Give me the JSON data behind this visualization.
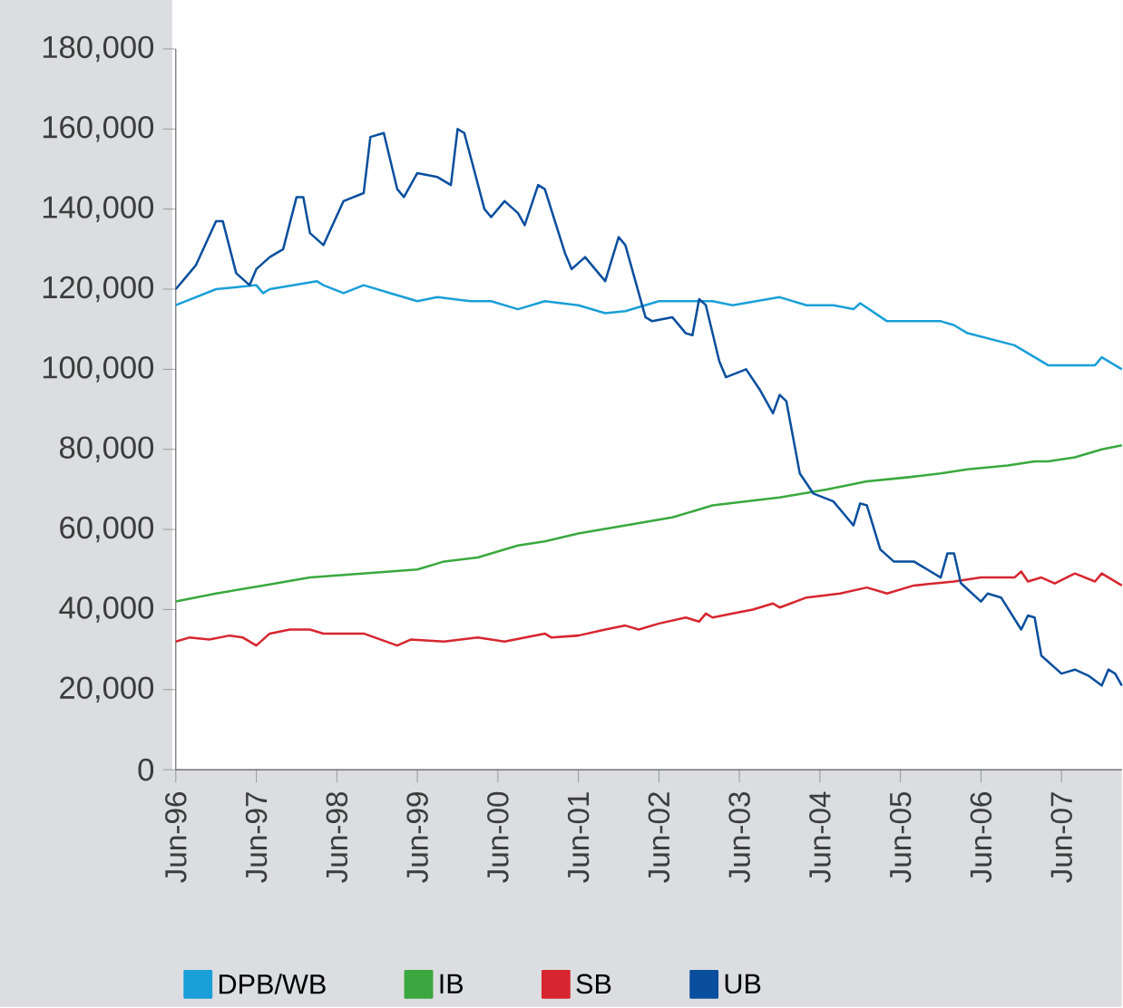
{
  "chart_data": {
    "type": "line",
    "xlim": [
      "1996-06",
      "2008-03"
    ],
    "xticks": [
      {
        "value": "1996-06",
        "label": "Jun-96"
      },
      {
        "value": "1997-06",
        "label": "Jun-97"
      },
      {
        "value": "1998-06",
        "label": "Jun-98"
      },
      {
        "value": "1999-06",
        "label": "Jun-99"
      },
      {
        "value": "2000-06",
        "label": "Jun-00"
      },
      {
        "value": "2001-06",
        "label": "Jun-01"
      },
      {
        "value": "2002-06",
        "label": "Jun-02"
      },
      {
        "value": "2003-06",
        "label": "Jun-03"
      },
      {
        "value": "2004-06",
        "label": "Jun-04"
      },
      {
        "value": "2005-06",
        "label": "Jun-05"
      },
      {
        "value": "2006-06",
        "label": "Jun-06"
      },
      {
        "value": "2007-06",
        "label": "Jun-07"
      }
    ],
    "ylim": [
      0,
      180000
    ],
    "yticks": [
      0,
      {
        "value": 20000,
        "label": "20,000"
      },
      {
        "value": 40000,
        "label": "40,000"
      },
      {
        "value": 60000,
        "label": "60,000"
      },
      {
        "value": 80000,
        "label": "80,000"
      },
      {
        "value": 100000,
        "label": "100,000"
      },
      {
        "value": 120000,
        "label": "120,000"
      },
      {
        "value": 140000,
        "label": "140,000"
      },
      {
        "value": 160000,
        "label": "160,000"
      },
      {
        "value": 180000,
        "label": "180,000"
      }
    ],
    "legend": "bottom",
    "series": [
      {
        "name": "DPB/WB",
        "color": "#1a9fd8",
        "x": [
          "1996-06",
          "1996-12",
          "1997-06",
          "1997-07",
          "1997-08",
          "1998-03",
          "1998-04",
          "1998-07",
          "1998-10",
          "1999-02",
          "1999-06",
          "1999-09",
          "2000-02",
          "2000-05",
          "2000-09",
          "2001-01",
          "2001-06",
          "2001-10",
          "2002-01",
          "2002-06",
          "2002-10",
          "2003-02",
          "2003-05",
          "2003-12",
          "2004-04",
          "2004-08",
          "2004-11",
          "2004-12",
          "2005-04",
          "2005-12",
          "2006-02",
          "2006-04",
          "2006-11",
          "2006-12",
          "2007-02",
          "2007-04",
          "2007-11",
          "2007-12",
          "2008-03"
        ],
        "values": [
          116000,
          120000,
          121000,
          119000,
          120000,
          122000,
          121000,
          119000,
          121000,
          119000,
          117000,
          118000,
          117000,
          117000,
          115000,
          117000,
          116000,
          114000,
          114500,
          117000,
          117000,
          117000,
          116000,
          118000,
          116000,
          116000,
          115000,
          116500,
          112000,
          112000,
          111000,
          109000,
          106000,
          105000,
          103000,
          101000,
          101000,
          103000,
          100000
        ]
      },
      {
        "name": "IB",
        "color": "#3aa83f",
        "x": [
          "1996-06",
          "1996-12",
          "1997-07",
          "1998-02",
          "1998-10",
          "1999-06",
          "1999-10",
          "2000-03",
          "2000-09",
          "2001-01",
          "2001-06",
          "2002-01",
          "2002-08",
          "2003-02",
          "2003-12",
          "2004-07",
          "2005-01",
          "2005-07",
          "2005-12",
          "2006-04",
          "2006-10",
          "2007-02",
          "2007-04",
          "2007-08",
          "2007-12",
          "2008-03"
        ],
        "values": [
          42000,
          44000,
          46000,
          48000,
          49000,
          50000,
          52000,
          53000,
          56000,
          57000,
          59000,
          61000,
          63000,
          66000,
          68000,
          70000,
          72000,
          73000,
          74000,
          75000,
          76000,
          77000,
          77000,
          78000,
          80000,
          81000
        ]
      },
      {
        "name": "SB",
        "color": "#d7262f",
        "x": [
          "1996-06",
          "1996-08",
          "1996-11",
          "1997-02",
          "1997-04",
          "1997-06",
          "1997-08",
          "1997-11",
          "1998-02",
          "1998-04",
          "1998-10",
          "1999-03",
          "1999-05",
          "1999-10",
          "2000-03",
          "2000-07",
          "2001-01",
          "2001-02",
          "2001-06",
          "2001-10",
          "2002-01",
          "2002-03",
          "2002-06",
          "2002-10",
          "2002-12",
          "2003-01",
          "2003-02",
          "2003-05",
          "2003-08",
          "2003-11",
          "2003-12",
          "2004-04",
          "2004-09",
          "2005-01",
          "2005-04",
          "2005-08",
          "2006-02",
          "2006-06",
          "2006-11",
          "2006-12",
          "2007-01",
          "2007-03",
          "2007-05",
          "2007-08",
          "2007-11",
          "2007-12",
          "2008-03"
        ],
        "values": [
          32000,
          33000,
          32500,
          33500,
          33000,
          31000,
          34000,
          35000,
          35000,
          34000,
          34000,
          31000,
          32500,
          32000,
          33000,
          32000,
          34000,
          33000,
          33500,
          35000,
          36000,
          35000,
          36500,
          38000,
          37000,
          39000,
          38000,
          39000,
          40000,
          41500,
          40500,
          43000,
          44000,
          45500,
          44000,
          46000,
          47000,
          48000,
          48000,
          49500,
          47000,
          48000,
          46500,
          49000,
          47000,
          49000,
          46000
        ]
      },
      {
        "name": "UB",
        "color": "#0a4f9e",
        "x": [
          "1996-06",
          "1996-08",
          "1996-09",
          "1996-12",
          "1997-01",
          "1997-03",
          "1997-05",
          "1997-06",
          "1997-08",
          "1997-10",
          "1997-12",
          "1998-01",
          "1998-02",
          "1998-04",
          "1998-07",
          "1998-10",
          "1998-11",
          "1999-01",
          "1999-03",
          "1999-04",
          "1999-06",
          "1999-09",
          "1999-11",
          "1999-12",
          "2000-01",
          "2000-04",
          "2000-05",
          "2000-07",
          "2000-09",
          "2000-10",
          "2000-12",
          "2001-01",
          "2001-04",
          "2001-05",
          "2001-07",
          "2001-09",
          "2001-10",
          "2001-12",
          "2002-01",
          "2002-04",
          "2002-05",
          "2002-08",
          "2002-10",
          "2002-11",
          "2002-12",
          "2003-01",
          "2003-03",
          "2003-04",
          "2003-07",
          "2003-09",
          "2003-11",
          "2003-12",
          "2004-01",
          "2004-03",
          "2004-05",
          "2004-08",
          "2004-10",
          "2004-11",
          "2004-12",
          "2005-01",
          "2005-03",
          "2005-05",
          "2005-08",
          "2005-10",
          "2005-12",
          "2006-01",
          "2006-02",
          "2006-03",
          "2006-06",
          "2006-07",
          "2006-09",
          "2006-12",
          "2007-01",
          "2007-02",
          "2007-03",
          "2007-06",
          "2007-08",
          "2007-10",
          "2007-12",
          "2008-01",
          "2008-02",
          "2008-03"
        ],
        "values": [
          120000,
          124000,
          126000,
          137000,
          137000,
          124000,
          121000,
          125000,
          128000,
          130000,
          143000,
          143000,
          134000,
          131000,
          142000,
          144000,
          158000,
          159000,
          145000,
          143000,
          149000,
          148000,
          146000,
          160000,
          159000,
          140000,
          138000,
          142000,
          139000,
          136000,
          146000,
          145000,
          129000,
          125000,
          128000,
          124000,
          122000,
          133000,
          131000,
          113000,
          112000,
          113000,
          109000,
          108500,
          117500,
          116000,
          102000,
          98000,
          100000,
          95000,
          89000,
          93600,
          92000,
          74000,
          69000,
          67000,
          63000,
          61000,
          66500,
          66000,
          55000,
          52000,
          52000,
          50000,
          48000,
          54000,
          54000,
          46600,
          42000,
          44000,
          43000,
          35000,
          38500,
          38000,
          28500,
          24000,
          25000,
          23500,
          21000,
          25000,
          24000,
          21000
        ]
      }
    ]
  }
}
